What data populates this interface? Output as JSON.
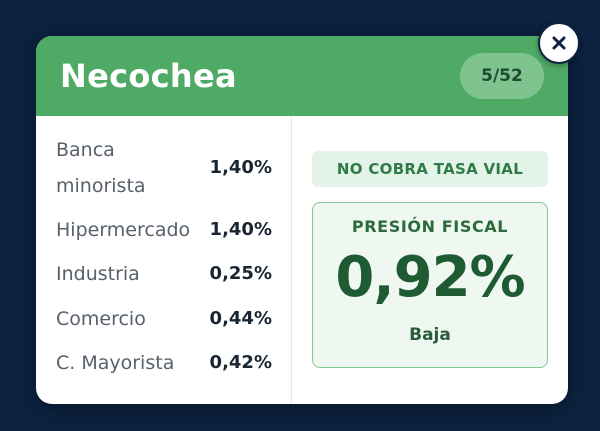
{
  "card": {
    "title": "Necochea",
    "rank": "5/52",
    "close_icon": "close-icon"
  },
  "rates": [
    {
      "label_line1": "Banca",
      "label_line2": "minorista",
      "value": "1,40%"
    },
    {
      "label": "Hipermercado",
      "value": "1,40%"
    },
    {
      "label": "Industria",
      "value": "0,25%"
    },
    {
      "label": "Comercio",
      "value": "0,44%"
    },
    {
      "label": "C. Mayorista",
      "value": "0,42%"
    }
  ],
  "tasa_vial": "NO COBRA TASA VIAL",
  "presion": {
    "title": "PRESIÓN FISCAL",
    "value": "0,92%",
    "level": "Baja"
  },
  "colors": {
    "background": "#0c2240",
    "header": "#4faa65",
    "accent": "#1e5a32"
  }
}
